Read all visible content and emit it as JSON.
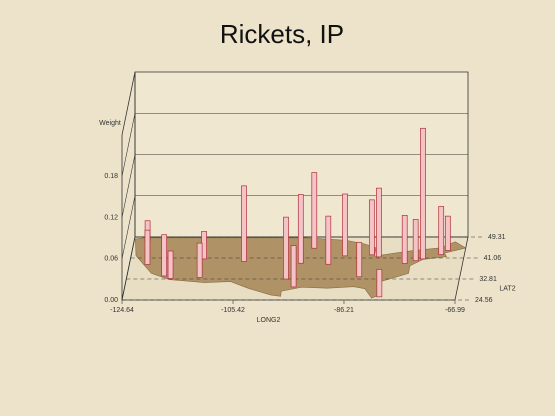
{
  "chart_data": {
    "type": "bar3d",
    "title": "Rickets, IP",
    "y_label": "Weight",
    "x_label": "LONG2",
    "z_label": "LAT2",
    "x": [
      -122.3,
      -121.5,
      -118.2,
      -117.0,
      -112.0,
      -111.9,
      -104.9,
      -97.0,
      -95.4,
      -95.0,
      -93.2,
      -90.2,
      -87.6,
      -84.4,
      -83.0,
      -81.7,
      -80.2,
      -77.0,
      -75.2,
      -74.0,
      -71.0,
      -70.0
    ],
    "z": [
      47.6,
      38.5,
      34.0,
      33.0,
      33.4,
      40.7,
      39.7,
      32.8,
      29.7,
      39.0,
      44.9,
      38.6,
      41.9,
      33.7,
      42.3,
      41.5,
      25.8,
      38.9,
      40.0,
      40.7,
      42.4,
      44.0
    ],
    "values": [
      0.03,
      0.05,
      0.06,
      0.04,
      0.05,
      0.04,
      0.11,
      0.09,
      0.06,
      0.1,
      0.11,
      0.07,
      0.09,
      0.05,
      0.08,
      0.1,
      0.04,
      0.07,
      0.06,
      0.19,
      0.07,
      0.05
    ],
    "color": "#f3c3c6",
    "xlim": [
      -124.64,
      -66.99
    ],
    "xticks": [
      -124.64,
      -105.42,
      -86.21,
      -66.99
    ],
    "zlim": [
      24.56,
      49.31
    ],
    "zticks": [
      24.56,
      32.81,
      41.06,
      49.31
    ],
    "ylim": [
      0,
      0.24
    ],
    "yticks": [
      {
        "value": 0,
        "label": "0.00"
      },
      0.06,
      0.12,
      0.18
    ]
  }
}
